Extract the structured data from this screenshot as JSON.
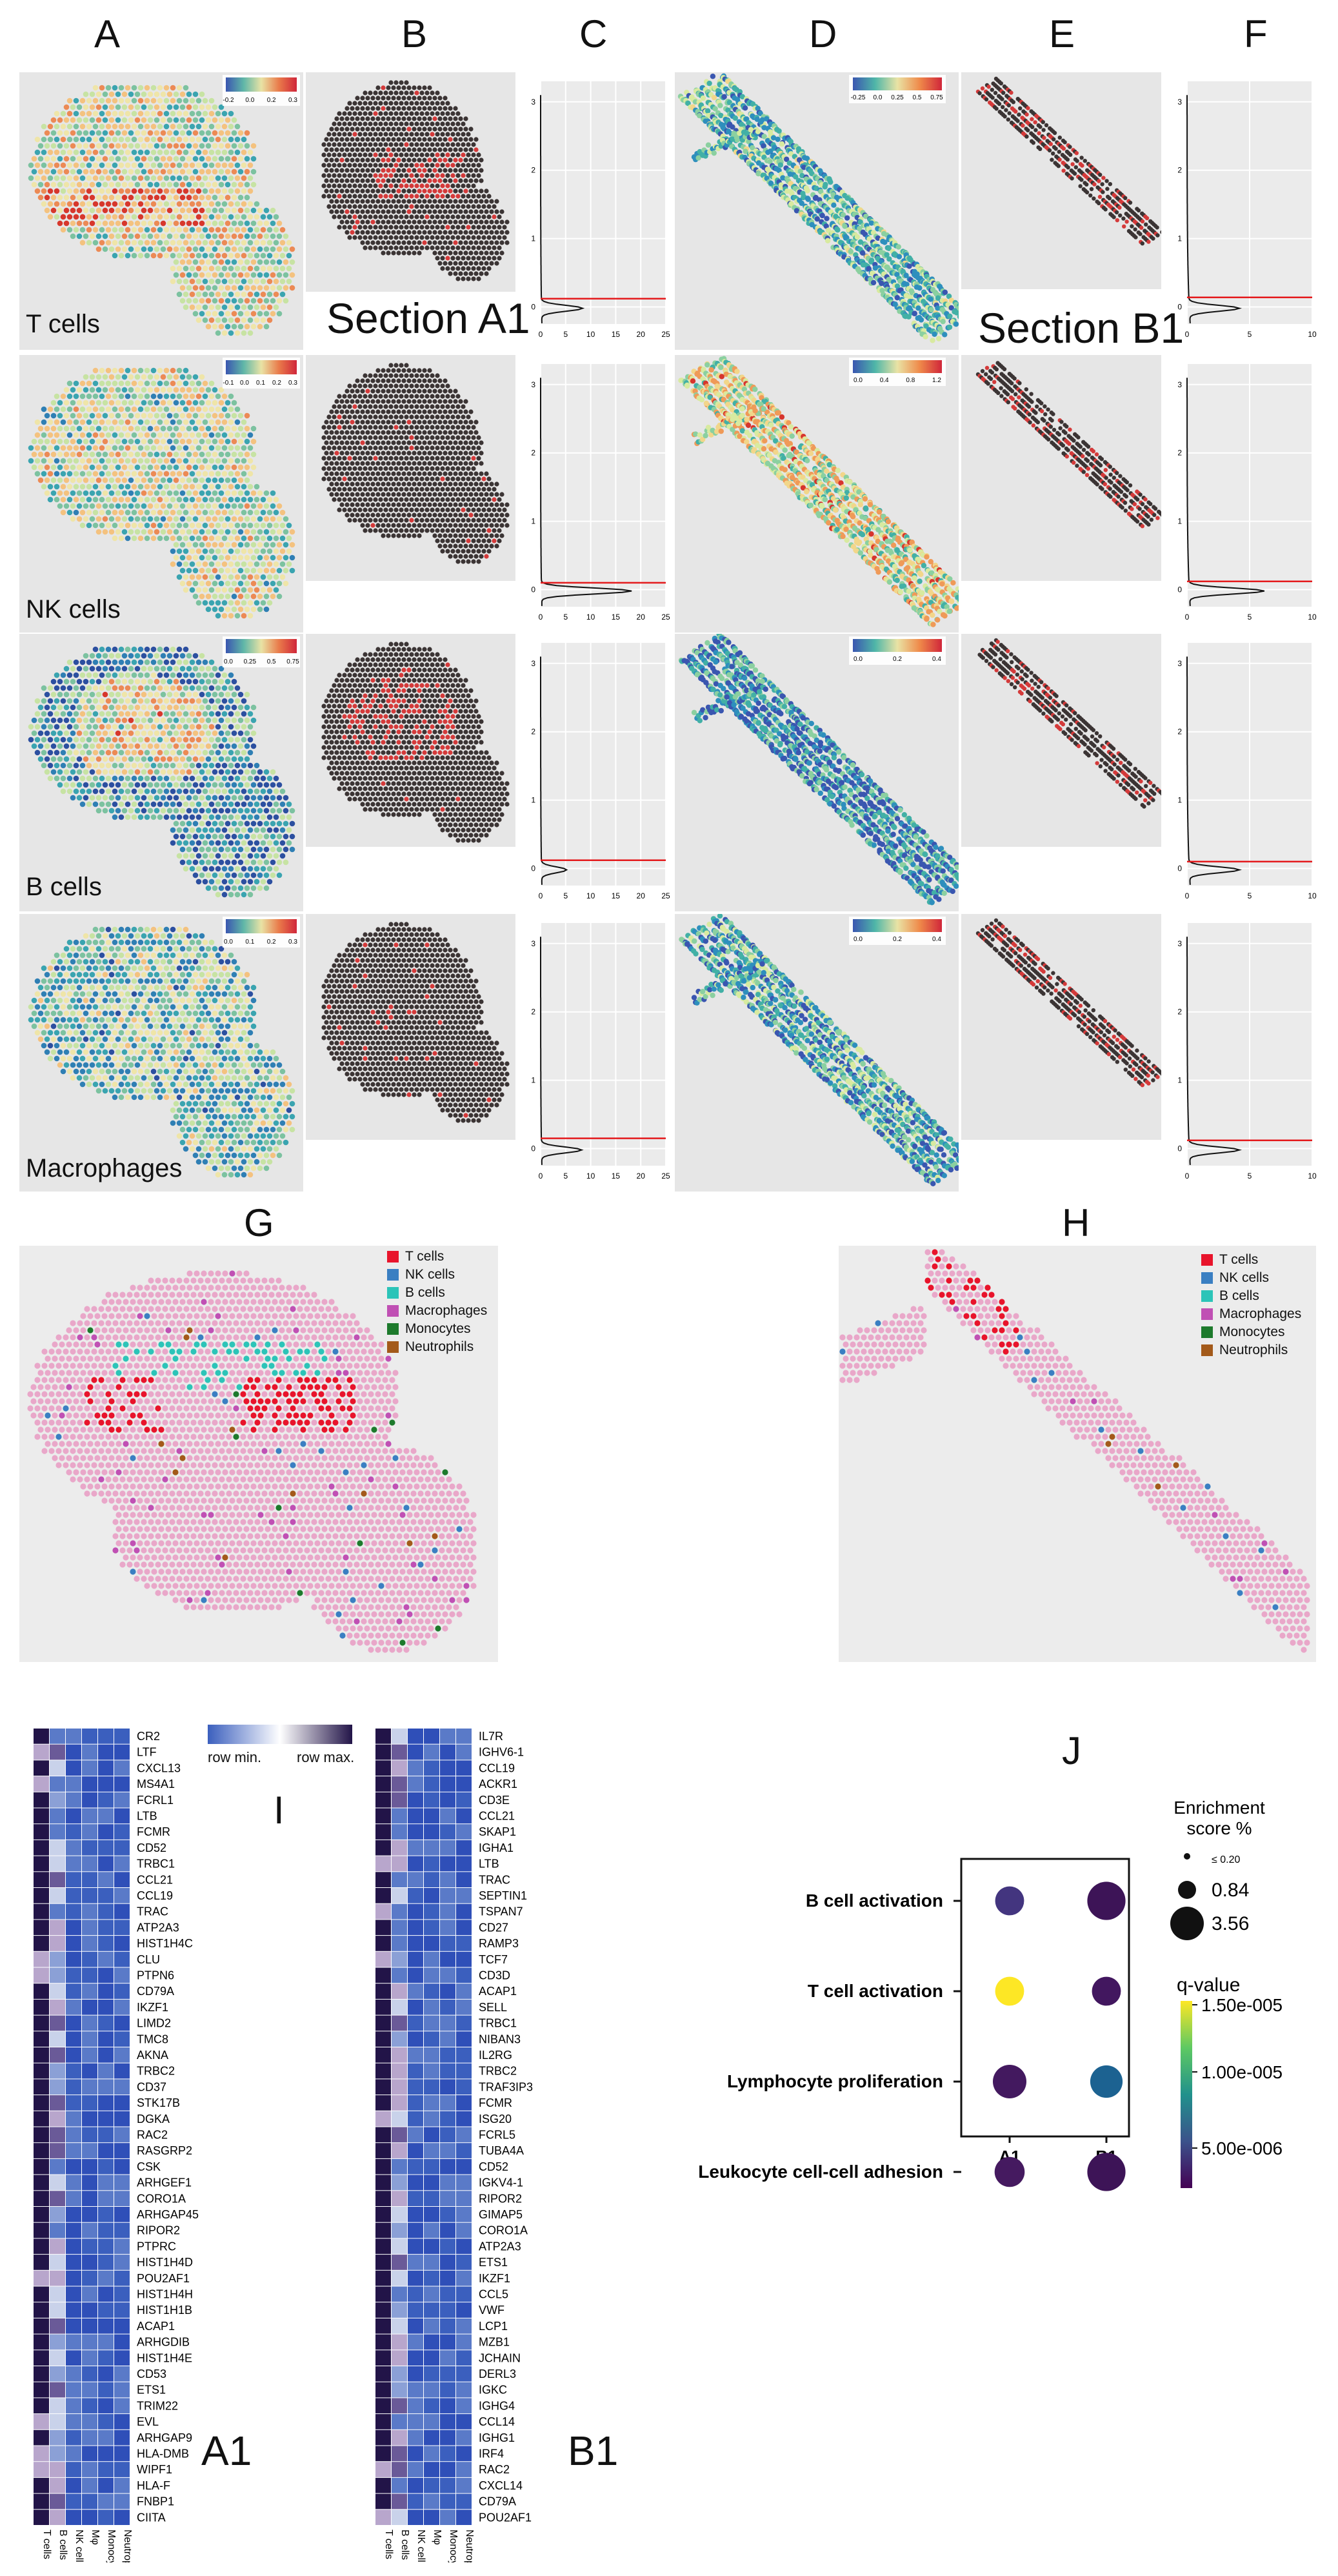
{
  "column_letters": [
    "A",
    "B",
    "C",
    "D",
    "E",
    "F"
  ],
  "row_labels": [
    "T cells",
    "NK cells",
    "B cells",
    "Macrophages"
  ],
  "section_labels": {
    "a1": "Section A1",
    "b1": "Section B1"
  },
  "colorbars_A": [
    {
      "ticks": [
        "-0.2",
        "0.0",
        "0.2",
        "0.3"
      ]
    },
    {
      "ticks": [
        "-0.1",
        "0.0",
        "0.1",
        "0.2",
        "0.3"
      ]
    },
    {
      "ticks": [
        "0.0",
        "0.25",
        "0.5",
        "0.75"
      ]
    },
    {
      "ticks": [
        "0.0",
        "0.1",
        "0.2",
        "0.3"
      ]
    }
  ],
  "colorbars_D": [
    {
      "ticks": [
        "-0.25",
        "0.0",
        "0.25",
        "0.5",
        "0.75"
      ]
    },
    {
      "ticks": [
        "0.0",
        "0.4",
        "0.8",
        "1.2"
      ]
    },
    {
      "ticks": [
        "0.0",
        "0.2",
        "0.4"
      ]
    },
    {
      "ticks": [
        "0.0",
        "0.2",
        "0.4"
      ]
    }
  ],
  "density_C": {
    "y_ticks": [
      "0",
      "1",
      "2",
      "3"
    ],
    "x_ticks": [
      "0",
      "5",
      "10",
      "15",
      "20",
      "25"
    ],
    "red_line_color": "#e41a1c"
  },
  "density_F": {
    "y_ticks": [
      "0",
      "1",
      "2",
      "3"
    ],
    "x_ticks": [
      "0",
      "5",
      "10"
    ]
  },
  "panel_G": {
    "letter": "G"
  },
  "panel_H": {
    "letter": "H"
  },
  "celltype_legend": [
    {
      "label": "T cells",
      "color": "#e8142b"
    },
    {
      "label": "NK cells",
      "color": "#3a7fc2"
    },
    {
      "label": "B cells",
      "color": "#2cc4b8"
    },
    {
      "label": "Macrophages",
      "color": "#c050b4"
    },
    {
      "label": "Monocytes",
      "color": "#1d7a2c"
    },
    {
      "label": "Neutrophils",
      "color": "#a35a1a"
    }
  ],
  "heatmap_legend": {
    "min": "row min.",
    "max": "row max.",
    "letter": "I"
  },
  "heatmap_columns": [
    "T cells",
    "B cells",
    "NK cells",
    "Mφ",
    "Monocytes",
    "Neutrophils"
  ],
  "heatmap_A1": {
    "label": "A1",
    "genes": [
      "CR2",
      "LTF",
      "CXCL13",
      "MS4A1",
      "FCRL1",
      "LTB",
      "FCMR",
      "CD52",
      "TRBC1",
      "CCL21",
      "CCL19",
      "TRAC",
      "ATP2A3",
      "HIST1H4C",
      "CLU",
      "PTPN6",
      "CD79A",
      "IKZF1",
      "LIMD2",
      "TMC8",
      "AKNA",
      "TRBC2",
      "CD37",
      "STK17B",
      "DGKA",
      "RAC2",
      "RASGRP2",
      "CSK",
      "ARHGEF1",
      "CORO1A",
      "ARHGAP45",
      "RIPOR2",
      "PTPRC",
      "HIST1H4D",
      "POU2AF1",
      "HIST1H4H",
      "HIST1H1B",
      "ACAP1",
      "ARHGDIB",
      "HIST1H4E",
      "CD53",
      "ETS1",
      "TRIM22",
      "EVL",
      "ARHGAP9",
      "HLA-DMB",
      "WIPF1",
      "HLA-F",
      "FNBP1",
      "CIITA"
    ]
  },
  "heatmap_B1": {
    "label": "B1",
    "genes": [
      "IL7R",
      "IGHV6-1",
      "CCL19",
      "ACKR1",
      "CD3E",
      "CCL21",
      "SKAP1",
      "IGHA1",
      "LTB",
      "TRAC",
      "SEPTIN1",
      "TSPAN7",
      "CD27",
      "RAMP3",
      "TCF7",
      "CD3D",
      "ACAP1",
      "SELL",
      "TRBC1",
      "NIBAN3",
      "IL2RG",
      "TRBC2",
      "TRAF3IP3",
      "FCMR",
      "ISG20",
      "FCRL5",
      "TUBA4A",
      "CD52",
      "IGKV4-1",
      "RIPOR2",
      "GIMAP5",
      "CORO1A",
      "ATP2A3",
      "ETS1",
      "IKZF1",
      "CCL5",
      "VWF",
      "LCP1",
      "MZB1",
      "JCHAIN",
      "DERL3",
      "IGKC",
      "IGHG4",
      "CCL14",
      "IGHG1",
      "IRF4",
      "RAC2",
      "CXCL14",
      "CD79A",
      "POU2AF1"
    ]
  },
  "panel_J": {
    "letter": "J"
  },
  "chart_data": {
    "type": "scatter",
    "title": "",
    "xlabel": "",
    "ylabel": "",
    "x_categories": [
      "A1",
      "B1"
    ],
    "y_categories": [
      "B cell activation",
      "T cell activation",
      "Lymphocyte proliferation",
      "Leukocyte cell-cell adhesion"
    ],
    "points": [
      {
        "term": "B cell activation",
        "section": "A1",
        "enrichment": 1.6,
        "q_value": 3e-06,
        "color": "#43357f"
      },
      {
        "term": "B cell activation",
        "section": "B1",
        "enrichment": 2.4,
        "q_value": 1e-06,
        "color": "#3d1457"
      },
      {
        "term": "T cell activation",
        "section": "A1",
        "enrichment": 1.6,
        "q_value": 1.5e-05,
        "color": "#fde725"
      },
      {
        "term": "T cell activation",
        "section": "B1",
        "enrichment": 1.6,
        "q_value": 1.5e-06,
        "color": "#42175f"
      },
      {
        "term": "Lymphocyte proliferation",
        "section": "A1",
        "enrichment": 2.0,
        "q_value": 1.5e-06,
        "color": "#43195f"
      },
      {
        "term": "Lymphocyte proliferation",
        "section": "B1",
        "enrichment": 1.9,
        "q_value": 5e-06,
        "color": "#1c6291"
      },
      {
        "term": "Leukocyte cell-cell adhesion",
        "section": "A1",
        "enrichment": 1.7,
        "q_value": 1.8e-06,
        "color": "#451a60"
      },
      {
        "term": "Leukocyte cell-cell adhesion",
        "section": "B1",
        "enrichment": 2.4,
        "q_value": 1e-06,
        "color": "#3d1457"
      }
    ],
    "size_legend_title": [
      "Enrichment",
      "score %"
    ],
    "size_legend": [
      {
        "label": "≤ 0.20",
        "value": 0.2
      },
      {
        "label": "0.84",
        "value": 0.84
      },
      {
        "label": "3.56",
        "value": 3.56
      }
    ],
    "color_legend_title": "q-value",
    "color_legend": [
      "1.50e-005",
      "1.00e-005",
      "5.00e-006"
    ],
    "color_range": [
      0,
      1.5e-05
    ]
  }
}
